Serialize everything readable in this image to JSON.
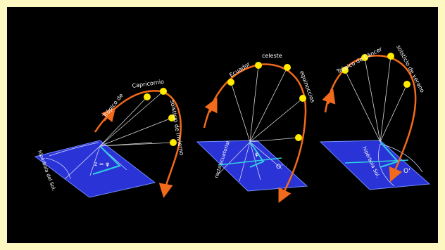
{
  "colors": {
    "border": "#fdf7c2",
    "background": "#000000",
    "plane": "#2a33d6",
    "arc": "#f26a1b",
    "sun": "#ffea00",
    "rays": "#d8d8d8",
    "shadow": "#30d0e0"
  },
  "panel_left": {
    "arc_label_1": "Trópico de",
    "arc_label_2": "Capricornio",
    "side_label": "solsticio de invierno",
    "angle_label": "z = φ",
    "plane_label": "hipérbola del Sol."
  },
  "panel_middle": {
    "arc_label_1": "Ecuador",
    "arc_label_2": "celeste",
    "side_label": "equinoccios",
    "plane_label_1": "recta ecuatorial.",
    "angle_label": "φ",
    "point_label": "O'"
  },
  "panel_right": {
    "arc_label_1": "Trópico de Câncer",
    "side_label": "solsticio de verano",
    "plane_label": "hipérbola Sol.",
    "point_label": "O'"
  }
}
